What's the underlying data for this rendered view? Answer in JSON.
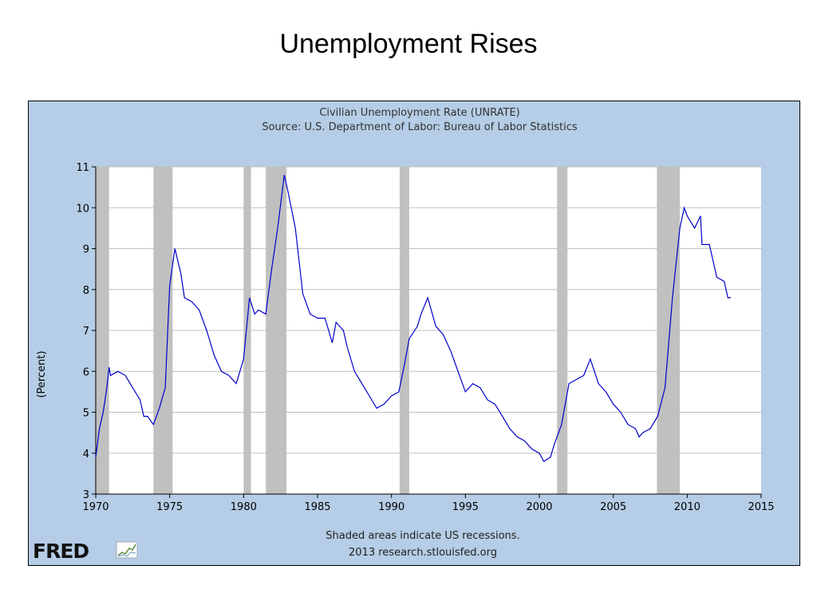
{
  "slide": {
    "title": "Unemployment Rises"
  },
  "colors": {
    "panel_bg": "#b5cde6",
    "plot_bg": "#ffffff",
    "line": "#0000cc",
    "recession": "#c0c0c0",
    "grid": "#c0c0c0"
  },
  "chart_data": {
    "type": "line",
    "title": "Civilian Unemployment Rate (UNRATE)",
    "subtitle": "Source: U.S. Department of Labor: Bureau of Labor Statistics",
    "ylabel": "(Percent)",
    "xlabel": "",
    "xlim": [
      1970,
      2015
    ],
    "ylim": [
      3,
      11
    ],
    "xticks": [
      1970,
      1975,
      1980,
      1985,
      1990,
      1995,
      2000,
      2005,
      2010,
      2015
    ],
    "yticks": [
      3,
      4,
      5,
      6,
      7,
      8,
      9,
      10,
      11
    ],
    "grid": "horizontal",
    "footnote": [
      "Shaded areas indicate US recessions.",
      "2013 research.stlouisfed.org"
    ],
    "logo": "FRED",
    "recessions": [
      [
        1969.95,
        1970.9
      ],
      [
        1973.9,
        1975.2
      ],
      [
        1980.0,
        1980.5
      ],
      [
        1981.5,
        1982.9
      ],
      [
        1990.55,
        1991.2
      ],
      [
        2001.2,
        2001.9
      ],
      [
        2007.95,
        2009.5
      ]
    ],
    "series": [
      {
        "values": [
          [
            1970.0,
            3.9
          ],
          [
            1970.25,
            4.6
          ],
          [
            1970.5,
            5.0
          ],
          [
            1970.75,
            5.6
          ],
          [
            1970.9,
            6.1
          ],
          [
            1971.0,
            5.9
          ],
          [
            1971.5,
            6.0
          ],
          [
            1972.0,
            5.9
          ],
          [
            1972.5,
            5.6
          ],
          [
            1973.0,
            5.3
          ],
          [
            1973.25,
            4.9
          ],
          [
            1973.5,
            4.9
          ],
          [
            1973.9,
            4.7
          ],
          [
            1974.3,
            5.1
          ],
          [
            1974.7,
            5.6
          ],
          [
            1975.0,
            8.1
          ],
          [
            1975.35,
            9.0
          ],
          [
            1975.75,
            8.4
          ],
          [
            1976.0,
            7.8
          ],
          [
            1976.5,
            7.7
          ],
          [
            1977.0,
            7.5
          ],
          [
            1977.5,
            7.0
          ],
          [
            1978.0,
            6.4
          ],
          [
            1978.5,
            6.0
          ],
          [
            1979.0,
            5.9
          ],
          [
            1979.5,
            5.7
          ],
          [
            1980.0,
            6.3
          ],
          [
            1980.4,
            7.8
          ],
          [
            1980.75,
            7.4
          ],
          [
            1981.0,
            7.5
          ],
          [
            1981.5,
            7.4
          ],
          [
            1981.9,
            8.5
          ],
          [
            1982.3,
            9.5
          ],
          [
            1982.75,
            10.8
          ],
          [
            1983.0,
            10.4
          ],
          [
            1983.5,
            9.5
          ],
          [
            1984.0,
            7.9
          ],
          [
            1984.5,
            7.4
          ],
          [
            1985.0,
            7.3
          ],
          [
            1985.5,
            7.3
          ],
          [
            1986.0,
            6.7
          ],
          [
            1986.25,
            7.2
          ],
          [
            1986.75,
            7.0
          ],
          [
            1987.0,
            6.6
          ],
          [
            1987.5,
            6.0
          ],
          [
            1988.0,
            5.7
          ],
          [
            1988.5,
            5.4
          ],
          [
            1989.0,
            5.1
          ],
          [
            1989.5,
            5.2
          ],
          [
            1990.0,
            5.4
          ],
          [
            1990.5,
            5.5
          ],
          [
            1990.9,
            6.2
          ],
          [
            1991.2,
            6.8
          ],
          [
            1991.75,
            7.1
          ],
          [
            1992.0,
            7.4
          ],
          [
            1992.45,
            7.8
          ],
          [
            1993.0,
            7.1
          ],
          [
            1993.5,
            6.9
          ],
          [
            1994.0,
            6.5
          ],
          [
            1994.5,
            6.0
          ],
          [
            1995.0,
            5.5
          ],
          [
            1995.5,
            5.7
          ],
          [
            1996.0,
            5.6
          ],
          [
            1996.5,
            5.3
          ],
          [
            1997.0,
            5.2
          ],
          [
            1997.5,
            4.9
          ],
          [
            1998.0,
            4.6
          ],
          [
            1998.5,
            4.4
          ],
          [
            1999.0,
            4.3
          ],
          [
            1999.5,
            4.1
          ],
          [
            2000.0,
            4.0
          ],
          [
            2000.3,
            3.8
          ],
          [
            2000.75,
            3.9
          ],
          [
            2001.0,
            4.2
          ],
          [
            2001.5,
            4.7
          ],
          [
            2002.0,
            5.7
          ],
          [
            2002.5,
            5.8
          ],
          [
            2003.0,
            5.9
          ],
          [
            2003.45,
            6.3
          ],
          [
            2004.0,
            5.7
          ],
          [
            2004.5,
            5.5
          ],
          [
            2005.0,
            5.2
          ],
          [
            2005.5,
            5.0
          ],
          [
            2006.0,
            4.7
          ],
          [
            2006.5,
            4.6
          ],
          [
            2006.75,
            4.4
          ],
          [
            2007.0,
            4.5
          ],
          [
            2007.5,
            4.6
          ],
          [
            2008.0,
            4.9
          ],
          [
            2008.5,
            5.6
          ],
          [
            2009.0,
            7.8
          ],
          [
            2009.5,
            9.5
          ],
          [
            2009.8,
            10.0
          ],
          [
            2010.0,
            9.8
          ],
          [
            2010.5,
            9.5
          ],
          [
            2010.9,
            9.8
          ],
          [
            2011.0,
            9.1
          ],
          [
            2011.5,
            9.1
          ],
          [
            2012.0,
            8.3
          ],
          [
            2012.5,
            8.2
          ],
          [
            2012.75,
            7.8
          ],
          [
            2012.95,
            7.8
          ]
        ]
      }
    ]
  }
}
